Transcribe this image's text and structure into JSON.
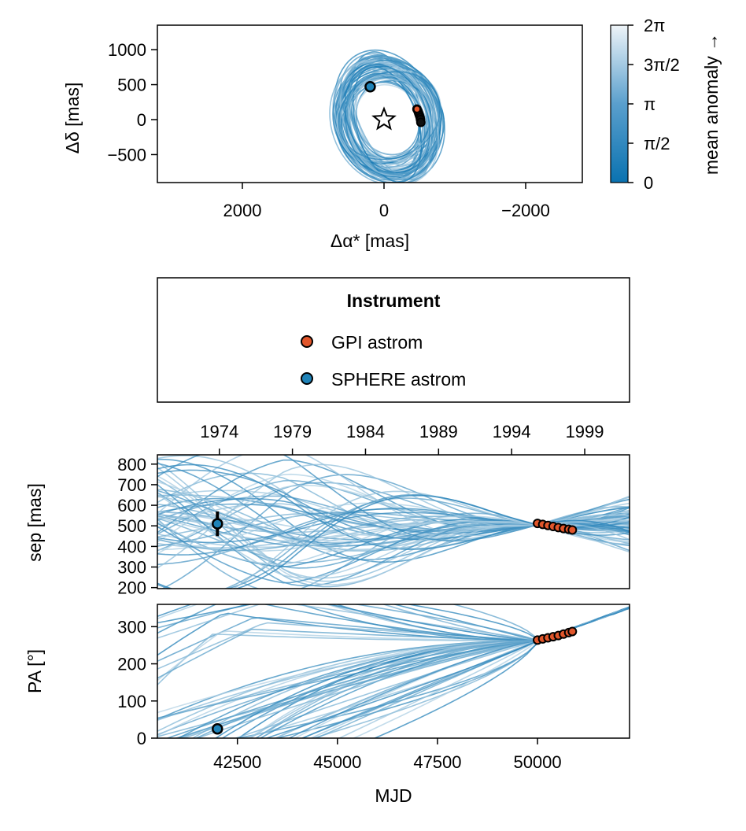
{
  "colors": {
    "gpi": "#e1562b",
    "sphere": "#1f83b8",
    "orbit_dark": "#0a72b0",
    "orbit_light": "#eef4f8",
    "frame": "#000000"
  },
  "legend": {
    "title": "Instrument",
    "items": [
      {
        "label": "GPI astrom",
        "color": "#e1562b"
      },
      {
        "label": "SPHERE astrom",
        "color": "#1f83b8"
      }
    ]
  },
  "chart_data": [
    {
      "id": "sky-plot",
      "type": "scatter",
      "xlabel": "Δα* [mas]",
      "ylabel": "Δδ [mas]",
      "xlim": [
        3200,
        -2800
      ],
      "ylim": [
        -900,
        1350
      ],
      "xticks": [
        {
          "value": 2000,
          "label": "2000"
        },
        {
          "value": 0,
          "label": "0"
        },
        {
          "value": -2000,
          "label": "−2000"
        }
      ],
      "yticks": [
        {
          "value": 1000,
          "label": "1000"
        },
        {
          "value": 500,
          "label": "500"
        },
        {
          "value": 0,
          "label": "0"
        },
        {
          "value": -500,
          "label": "−500"
        }
      ],
      "star": {
        "x": 0,
        "y": 0
      },
      "sphere_points": [
        {
          "x": 195,
          "y": 470
        }
      ],
      "gpi_points": [
        {
          "x": -465,
          "y": 150
        },
        {
          "x": -480,
          "y": 120
        },
        {
          "x": -490,
          "y": 90
        },
        {
          "x": -500,
          "y": 60
        },
        {
          "x": -510,
          "y": 30
        },
        {
          "x": -515,
          "y": 0
        },
        {
          "x": -520,
          "y": -40
        }
      ],
      "orbit_count": 60
    },
    {
      "id": "colorbar",
      "type": "heatmap",
      "label": "mean anomaly →",
      "range": [
        0,
        6.2832
      ],
      "ticks": [
        {
          "value": 0,
          "label": "0"
        },
        {
          "value": 1.5708,
          "label": "π/2"
        },
        {
          "value": 3.1416,
          "label": "π"
        },
        {
          "value": 4.7124,
          "label": "3π/2"
        },
        {
          "value": 6.2832,
          "label": "2π"
        }
      ]
    },
    {
      "id": "separation",
      "type": "line",
      "ylabel": "sep [mas]",
      "xlim": [
        40500,
        52300
      ],
      "ylim": [
        195,
        845
      ],
      "yticks": [
        {
          "value": 800,
          "label": "800"
        },
        {
          "value": 700,
          "label": "700"
        },
        {
          "value": 600,
          "label": "600"
        },
        {
          "value": 500,
          "label": "500"
        },
        {
          "value": 400,
          "label": "400"
        },
        {
          "value": 300,
          "label": "300"
        },
        {
          "value": 200,
          "label": "200"
        }
      ],
      "top_axis_years": [
        {
          "value": 1974,
          "label": "1974"
        },
        {
          "value": 1979,
          "label": "1979"
        },
        {
          "value": 1984,
          "label": "1984"
        },
        {
          "value": 1989,
          "label": "1989"
        },
        {
          "value": 1994,
          "label": "1994"
        },
        {
          "value": 1999,
          "label": "1999"
        }
      ],
      "sphere_points": [
        {
          "x": 42000,
          "y": 510,
          "err": 60
        }
      ],
      "gpi_points": [
        {
          "x": 50000,
          "y": 512
        },
        {
          "x": 50130,
          "y": 507
        },
        {
          "x": 50260,
          "y": 502
        },
        {
          "x": 50390,
          "y": 497
        },
        {
          "x": 50520,
          "y": 492
        },
        {
          "x": 50650,
          "y": 487
        },
        {
          "x": 50780,
          "y": 483
        },
        {
          "x": 50870,
          "y": 480
        }
      ],
      "orbit_count": 60
    },
    {
      "id": "position-angle",
      "type": "line",
      "xlabel": "MJD",
      "ylabel": "PA [°]",
      "xlim": [
        40500,
        52300
      ],
      "ylim": [
        0,
        360
      ],
      "xticks": [
        {
          "value": 42500,
          "label": "42500"
        },
        {
          "value": 45000,
          "label": "45000"
        },
        {
          "value": 47500,
          "label": "47500"
        },
        {
          "value": 50000,
          "label": "50000"
        }
      ],
      "yticks": [
        {
          "value": 300,
          "label": "300"
        },
        {
          "value": 200,
          "label": "200"
        },
        {
          "value": 100,
          "label": "100"
        },
        {
          "value": 0,
          "label": "0"
        }
      ],
      "sphere_points": [
        {
          "x": 42000,
          "y": 25
        }
      ],
      "gpi_points": [
        {
          "x": 50000,
          "y": 264
        },
        {
          "x": 50130,
          "y": 267
        },
        {
          "x": 50260,
          "y": 270
        },
        {
          "x": 50390,
          "y": 273
        },
        {
          "x": 50520,
          "y": 276
        },
        {
          "x": 50650,
          "y": 280
        },
        {
          "x": 50780,
          "y": 284
        },
        {
          "x": 50870,
          "y": 287
        }
      ],
      "orbit_count": 60
    }
  ]
}
